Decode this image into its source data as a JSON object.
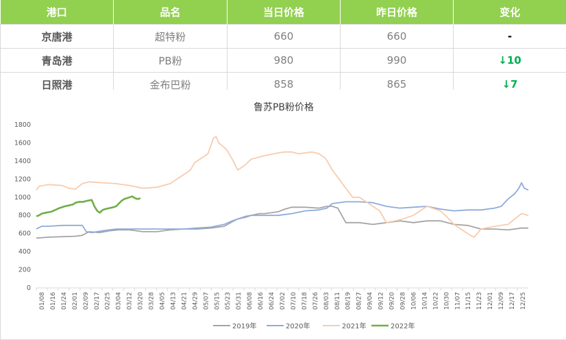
{
  "table": {
    "headers": [
      "港口",
      "品名",
      "当日价格",
      "昨日价格",
      "变化"
    ],
    "rows": [
      {
        "port": "京唐港",
        "product": "超特粉",
        "today": "660",
        "yesterday": "660",
        "change": "-",
        "trend": "flat"
      },
      {
        "port": "青岛港",
        "product": "PB粉",
        "today": "980",
        "yesterday": "990",
        "change": "↓10",
        "trend": "down"
      },
      {
        "port": "日照港",
        "product": "金布巴粉",
        "today": "858",
        "yesterday": "865",
        "change": "↓7",
        "trend": "down"
      }
    ]
  },
  "colors": {
    "header_bg": "#92d050",
    "down": "#00b050"
  },
  "chart_data": {
    "type": "line",
    "title": "鲁苏PB粉价格",
    "xlabel": "",
    "ylabel": "",
    "ylim": [
      0,
      1800
    ],
    "yticks": [
      0,
      200,
      400,
      600,
      800,
      1000,
      1200,
      1400,
      1600,
      1800
    ],
    "x_tick_labels": [
      "01/08",
      "01/16",
      "01/24",
      "02/01",
      "02/09",
      "02/17",
      "02/25",
      "03/04",
      "03/12",
      "03/20",
      "03/28",
      "04/05",
      "04/13",
      "04/21",
      "04/29",
      "05/07",
      "05/15",
      "05/23",
      "05/31",
      "06/08",
      "06/16",
      "06/24",
      "07/02",
      "07/10",
      "07/18",
      "07/26",
      "08/03",
      "08/11",
      "08/19",
      "08/27",
      "09/04",
      "09/12",
      "09/20",
      "09/28",
      "10/06",
      "10/14",
      "10/22",
      "10/30",
      "11/07",
      "11/15",
      "11/23",
      "12/01",
      "12/09",
      "12/17",
      "12/25"
    ],
    "x_domain_days": [
      1,
      365
    ],
    "legend_position": "bottom",
    "grid": false,
    "series": [
      {
        "name": "2019年",
        "color": "#a5a5a5",
        "days": [
          1,
          10,
          20,
          30,
          35,
          40,
          48,
          55,
          62,
          70,
          80,
          90,
          100,
          110,
          120,
          130,
          140,
          146,
          150,
          156,
          160,
          166,
          170,
          180,
          185,
          190,
          200,
          210,
          216,
          220,
          224,
          230,
          240,
          250,
          260,
          270,
          280,
          290,
          300,
          305,
          310,
          320,
          330,
          340,
          350,
          360,
          365
        ],
        "values": [
          550,
          560,
          565,
          570,
          580,
          620,
          610,
          630,
          640,
          640,
          620,
          620,
          640,
          650,
          650,
          660,
          680,
          730,
          760,
          780,
          800,
          820,
          820,
          840,
          870,
          890,
          890,
          880,
          900,
          900,
          880,
          720,
          720,
          700,
          720,
          740,
          720,
          740,
          740,
          720,
          700,
          690,
          650,
          650,
          640,
          660,
          660
        ]
      },
      {
        "name": "2020年",
        "color": "#8eaadb",
        "days": [
          1,
          5,
          10,
          20,
          30,
          35,
          38,
          42,
          50,
          60,
          70,
          80,
          90,
          100,
          110,
          120,
          130,
          140,
          146,
          150,
          156,
          160,
          170,
          180,
          190,
          200,
          210,
          216,
          220,
          230,
          240,
          250,
          260,
          270,
          280,
          290,
          300,
          310,
          320,
          330,
          340,
          345,
          350,
          355,
          358,
          360,
          362,
          365
        ],
        "values": [
          650,
          680,
          680,
          690,
          690,
          690,
          620,
          610,
          630,
          650,
          650,
          650,
          650,
          650,
          650,
          660,
          670,
          700,
          740,
          760,
          790,
          800,
          800,
          800,
          820,
          850,
          860,
          880,
          930,
          950,
          950,
          940,
          900,
          880,
          890,
          900,
          870,
          850,
          860,
          860,
          880,
          900,
          980,
          1040,
          1100,
          1160,
          1100,
          1080
        ]
      },
      {
        "name": "2021年",
        "color": "#f8cbad",
        "days": [
          1,
          3,
          10,
          20,
          25,
          30,
          35,
          40,
          50,
          60,
          70,
          80,
          90,
          100,
          110,
          115,
          118,
          122,
          128,
          132,
          134,
          136,
          140,
          142,
          146,
          150,
          155,
          160,
          170,
          180,
          185,
          190,
          195,
          200,
          205,
          210,
          215,
          220,
          225,
          230,
          235,
          240,
          245,
          250,
          255,
          260,
          270,
          280,
          290,
          300,
          305,
          310,
          318,
          322,
          325,
          330,
          340,
          350,
          355,
          360,
          365
        ],
        "values": [
          1080,
          1120,
          1140,
          1130,
          1100,
          1090,
          1150,
          1170,
          1160,
          1150,
          1130,
          1100,
          1110,
          1150,
          1250,
          1300,
          1380,
          1420,
          1480,
          1650,
          1670,
          1600,
          1550,
          1520,
          1420,
          1300,
          1350,
          1420,
          1460,
          1490,
          1500,
          1500,
          1480,
          1490,
          1500,
          1480,
          1430,
          1300,
          1200,
          1100,
          1000,
          1000,
          950,
          900,
          850,
          720,
          750,
          800,
          900,
          850,
          780,
          700,
          620,
          580,
          560,
          650,
          680,
          700,
          760,
          820,
          800
        ]
      },
      {
        "name": "2022年",
        "color": "#70ad47",
        "days": [
          1,
          3,
          5,
          8,
          12,
          15,
          18,
          22,
          25,
          28,
          30,
          33,
          36,
          38,
          42,
          44,
          46,
          48,
          50,
          52,
          55,
          58,
          60,
          62,
          64,
          66,
          68,
          70,
          72,
          74,
          76,
          78
        ],
        "values": [
          790,
          800,
          820,
          830,
          840,
          860,
          880,
          900,
          910,
          920,
          940,
          950,
          950,
          960,
          970,
          900,
          850,
          830,
          860,
          870,
          880,
          890,
          900,
          930,
          960,
          980,
          990,
          1000,
          1010,
          990,
          980,
          990
        ]
      }
    ]
  }
}
